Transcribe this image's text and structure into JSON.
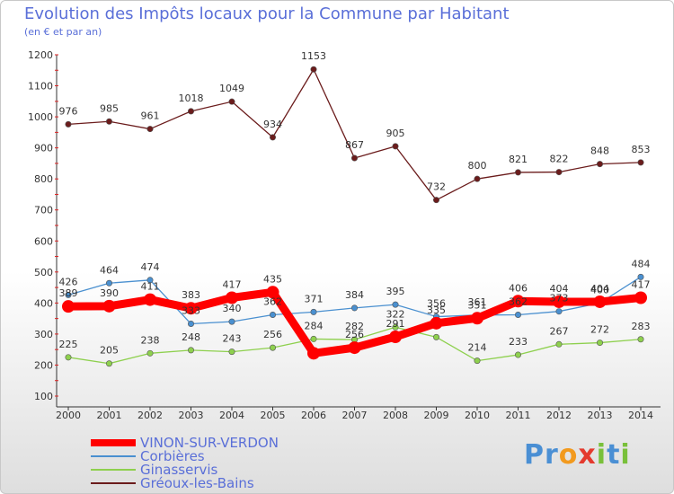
{
  "header": {
    "title": "Evolution des Impôts locaux pour la Commune par Habitant",
    "subtitle": "(en € et par an)"
  },
  "logo": {
    "text": "Proxiti",
    "letters": [
      "P",
      "r",
      "o",
      "x",
      "i",
      "t",
      "i"
    ],
    "colors": [
      "#4a8fd4",
      "#4a8fd4",
      "#f29a1e",
      "#e43a2e",
      "#79c03a",
      "#4a8fd4",
      "#79c03a"
    ]
  },
  "chart_data": {
    "type": "line",
    "x": [
      "2000",
      "2001",
      "2002",
      "2003",
      "2004",
      "2005",
      "2006",
      "2007",
      "2008",
      "2009",
      "2010",
      "2011",
      "2012",
      "2013",
      "2014"
    ],
    "ylim": [
      100,
      1200
    ],
    "yticks": [
      100,
      200,
      300,
      400,
      500,
      600,
      700,
      800,
      900,
      1000,
      1100,
      1200
    ],
    "grid": false,
    "legend_position": "bottom-left",
    "series": [
      {
        "name": "VINON-SUR-VERDON",
        "color": "#ff0000",
        "values": [
          389,
          390,
          411,
          383,
          417,
          435,
          238,
          256,
          291,
          335,
          351,
          406,
          404,
          404,
          417
        ],
        "labels": [
          "389",
          "390",
          "411",
          "383",
          "417",
          "435",
          "",
          "256",
          "291",
          "335",
          "351",
          "406",
          "404",
          "404",
          "417"
        ]
      },
      {
        "name": "Corbières",
        "color": "#4a90d0",
        "values": [
          426,
          464,
          474,
          333,
          340,
          362,
          371,
          384,
          395,
          356,
          361,
          362,
          373,
          400,
          484
        ],
        "labels": [
          "426",
          "464",
          "474",
          "333",
          "340",
          "362",
          "371",
          "384",
          "395",
          "356",
          "361",
          "362",
          "373",
          "400",
          "484"
        ]
      },
      {
        "name": "Ginasservis",
        "color": "#8ed04e",
        "values": [
          225,
          205,
          238,
          248,
          243,
          256,
          284,
          282,
          322,
          290,
          214,
          233,
          267,
          272,
          283
        ],
        "labels": [
          "225",
          "205",
          "238",
          "248",
          "243",
          "256",
          "284",
          "282",
          "322",
          "",
          "214",
          "233",
          "267",
          "272",
          "283"
        ]
      },
      {
        "name": "Gréoux-les-Bains",
        "color": "#6b1c1c",
        "values": [
          976,
          985,
          961,
          1018,
          1049,
          934,
          1153,
          867,
          905,
          732,
          800,
          821,
          822,
          848,
          853
        ],
        "labels": [
          "976",
          "985",
          "961",
          "1018",
          "1049",
          "934",
          "1153",
          "867",
          "905",
          "732",
          "800",
          "821",
          "822",
          "848",
          "853"
        ]
      }
    ]
  }
}
